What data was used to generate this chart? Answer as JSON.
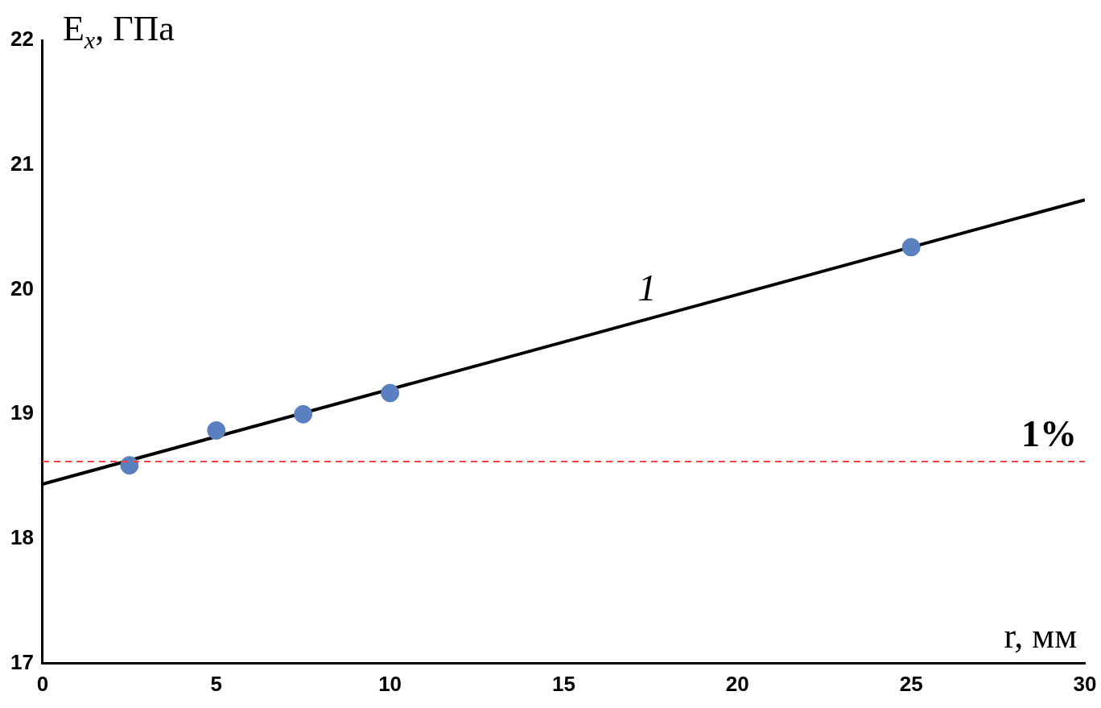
{
  "chart_data": {
    "type": "scatter",
    "xlabel": "r, мм",
    "ylabel": "E$_{x}$, ГПа",
    "annotations": [
      "1%"
    ],
    "x": [
      2.5,
      5,
      7.5,
      10,
      25
    ],
    "series": [
      {
        "type": "scatter",
        "color": "#5b80c0",
        "values": [
          18.59,
          18.87,
          19.0,
          19.17,
          20.34
        ]
      },
      {
        "type": "line",
        "name": "1",
        "color": "#000000",
        "marker": "none",
        "x": [
          0,
          30
        ],
        "values": [
          18.44,
          20.72
        ]
      }
    ],
    "xlim": [
      0,
      30
    ],
    "ylim": [
      17,
      22
    ],
    "xticks": [
      0,
      5,
      10,
      15,
      20,
      25,
      30
    ],
    "yticks": [
      17,
      18,
      19,
      20,
      21,
      22
    ],
    "ref_lines": [
      {
        "axis": "y",
        "value": 18.62,
        "color": "#ff4040",
        "line_style": "dashed"
      }
    ],
    "grid": false,
    "legend": false,
    "marker": "circle"
  }
}
